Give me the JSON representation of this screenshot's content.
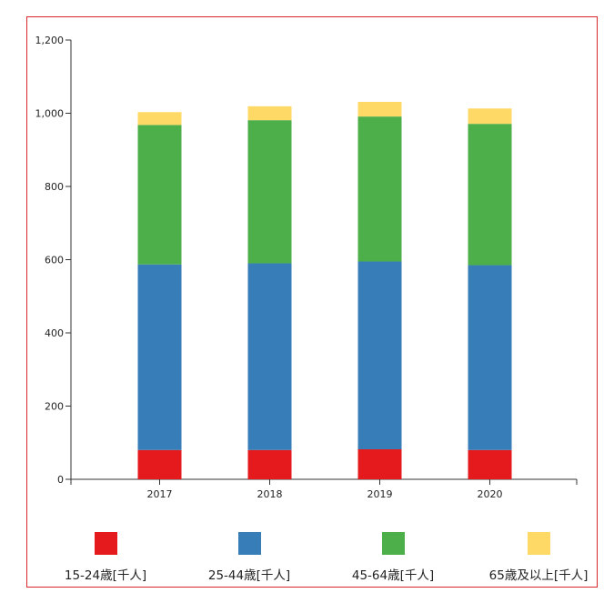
{
  "chart_data": {
    "type": "bar",
    "stacked": true,
    "categories": [
      "2017",
      "2018",
      "2019",
      "2020"
    ],
    "series": [
      {
        "name": "15-24歳[千人]",
        "color": "#e41a1c",
        "values": [
          80,
          80,
          82,
          80
        ]
      },
      {
        "name": "25-44歳[千人]",
        "color": "#377eb8",
        "values": [
          507,
          510,
          513,
          505
        ]
      },
      {
        "name": "45-64歳[千人]",
        "color": "#4daf4a",
        "values": [
          381,
          391,
          396,
          386
        ]
      },
      {
        "name": "65歳及以上[千人]",
        "color": "#ffd966",
        "values": [
          35,
          38,
          40,
          42
        ]
      }
    ],
    "ylim": [
      0,
      1200
    ],
    "yticks": [
      0,
      200,
      400,
      600,
      800,
      1000,
      1200
    ],
    "ytick_labels": [
      "0",
      "200",
      "400",
      "600",
      "800",
      "1,000",
      "1,200"
    ],
    "grid": false,
    "legend_position": "bottom"
  }
}
